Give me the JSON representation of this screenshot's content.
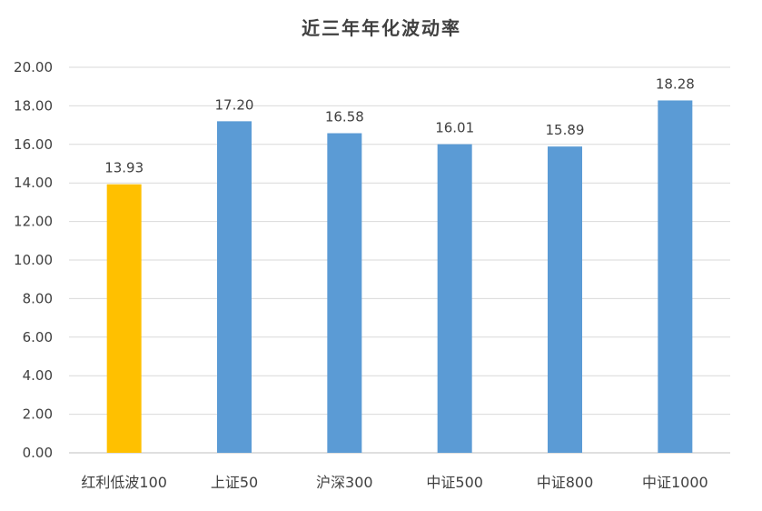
{
  "chart_data": {
    "type": "bar",
    "title": "近三年年化波动率",
    "categories": [
      "红利低波100",
      "上证50",
      "沪深300",
      "中证500",
      "中证800",
      "中证1000"
    ],
    "values": [
      13.93,
      17.2,
      16.58,
      16.01,
      15.89,
      18.28
    ],
    "value_labels": [
      "13.93",
      "17.20",
      "16.58",
      "16.01",
      "15.89",
      "18.28"
    ],
    "colors": [
      "#FFC000",
      "#5B9BD5",
      "#5B9BD5",
      "#5B9BD5",
      "#5B9BD5",
      "#5B9BD5"
    ],
    "ylim": [
      0,
      20
    ],
    "yticks": [
      "0.00",
      "2.00",
      "4.00",
      "6.00",
      "8.00",
      "10.00",
      "12.00",
      "14.00",
      "16.00",
      "18.00",
      "20.00"
    ],
    "xlabel": "",
    "ylabel": "",
    "grid": true,
    "legend": "none"
  }
}
